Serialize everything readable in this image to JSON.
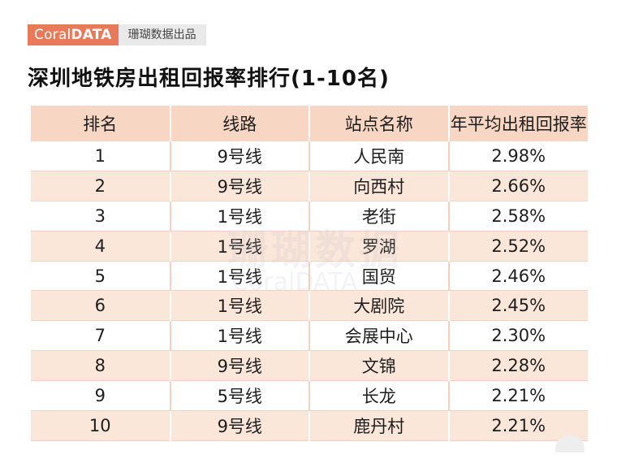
{
  "brand": {
    "logo_light": "Coral",
    "logo_bold": "DATA",
    "sub": "珊瑚数据出品"
  },
  "title": "深圳地铁房出租回报率排行(1-10名)",
  "watermark": {
    "main": "珊瑚数据",
    "sub": "CoralDATA"
  },
  "table": {
    "headers": [
      "排名",
      "线路",
      "站点名称",
      "年平均出租回报率"
    ],
    "rows": [
      [
        "1",
        "9号线",
        "人民南",
        "2.98%"
      ],
      [
        "2",
        "9号线",
        "向西村",
        "2.66%"
      ],
      [
        "3",
        "1号线",
        "老街",
        "2.58%"
      ],
      [
        "4",
        "1号线",
        "罗湖",
        "2.52%"
      ],
      [
        "5",
        "1号线",
        "国贸",
        "2.46%"
      ],
      [
        "6",
        "1号线",
        "大剧院",
        "2.45%"
      ],
      [
        "7",
        "1号线",
        "会展中心",
        "2.30%"
      ],
      [
        "8",
        "9号线",
        "文锦",
        "2.28%"
      ],
      [
        "9",
        "5号线",
        "长龙",
        "2.21%"
      ],
      [
        "10",
        "9号线",
        "鹿丹村",
        "2.21%"
      ]
    ]
  },
  "colors": {
    "brand_accent": "#e8795a",
    "header_bg": "#f7d6c3",
    "stripe_bg": "#fbe6da"
  }
}
